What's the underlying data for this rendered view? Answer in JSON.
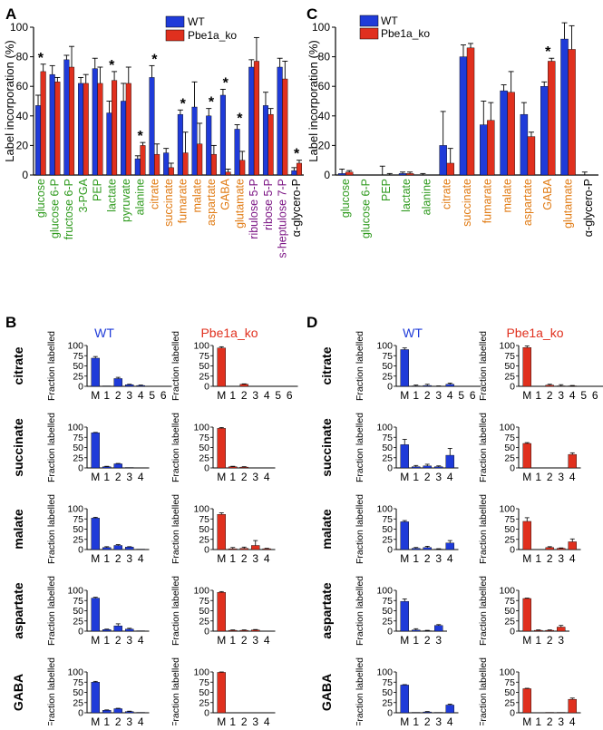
{
  "figure": {
    "panels": {
      "A": {
        "label": "A"
      },
      "B": {
        "label": "B"
      },
      "C": {
        "label": "C"
      },
      "D": {
        "label": "D"
      }
    },
    "legend": {
      "wt": "WT",
      "ko": "Pbe1a_ko"
    },
    "sig_marker": "*",
    "colors": {
      "wt": "#1f3bd9",
      "ko": "#e0301e",
      "green": "#2e9a1d",
      "orange": "#e07a12",
      "purple": "#7b1484",
      "black": "#000000"
    }
  },
  "chart_data": [
    {
      "panel": "A",
      "type": "bar",
      "ylabel": "Label incorporation (%)",
      "ylim": [
        0,
        100
      ],
      "yticks": [
        0,
        20,
        40,
        60,
        80,
        100
      ],
      "grid": false,
      "legend_position": "top-right",
      "categories": [
        "glucose",
        "glucose 6-P",
        "fructose 6-P",
        "3-PGA",
        "PEP",
        "lactate",
        "pyruvate",
        "alanine",
        "citrate",
        "succinate",
        "fumarate",
        "malate",
        "aspartate",
        "GABA",
        "glutamate",
        "ribulose 5-P",
        "ribose 5-P",
        "s-heptulose 7-P",
        "α-glycero-P"
      ],
      "category_colors": [
        "green",
        "green",
        "green",
        "green",
        "green",
        "green",
        "green",
        "green",
        "orange",
        "orange",
        "orange",
        "orange",
        "orange",
        "orange",
        "orange",
        "purple",
        "purple",
        "purple",
        "black"
      ],
      "series": [
        {
          "name": "WT",
          "values": [
            47,
            68,
            78,
            62,
            72,
            42,
            50,
            11,
            66,
            15,
            41,
            46,
            40,
            54,
            31,
            73,
            47,
            73,
            3
          ],
          "errors": [
            7,
            6,
            3,
            4,
            7,
            8,
            12,
            2,
            8,
            3,
            3,
            17,
            5,
            4,
            3,
            5,
            9,
            6,
            2
          ]
        },
        {
          "name": "Pbe1a_ko",
          "values": [
            70,
            63,
            73,
            62,
            62,
            64,
            62,
            20,
            14,
            5,
            15,
            21,
            14,
            2,
            10,
            77,
            41,
            65,
            8
          ],
          "errors": [
            5,
            3,
            14,
            6,
            11,
            6,
            11,
            2,
            7,
            3,
            14,
            14,
            6,
            2,
            6,
            16,
            4,
            12,
            2
          ]
        }
      ],
      "significant": [
        "glucose",
        "lactate",
        "alanine",
        "citrate",
        "fumarate",
        "aspartate",
        "GABA",
        "glutamate",
        "α-glycero-P"
      ]
    },
    {
      "panel": "C",
      "type": "bar",
      "ylabel": "Label incorporation (%)",
      "ylim": [
        0,
        100
      ],
      "yticks": [
        0,
        20,
        40,
        60,
        80,
        100
      ],
      "grid": false,
      "legend_position": "top-left",
      "categories": [
        "glucose",
        "glucose 6-P",
        "PEP",
        "lactate",
        "alanine",
        "citrate",
        "succinate",
        "fumarate",
        "malate",
        "aspartate",
        "GABA",
        "glutamate",
        "α-glycero-P"
      ],
      "category_colors": [
        "green",
        "green",
        "green",
        "green",
        "green",
        "orange",
        "orange",
        "orange",
        "orange",
        "orange",
        "orange",
        "orange",
        "black"
      ],
      "series": [
        {
          "name": "WT",
          "values": [
            1,
            0,
            0,
            1,
            0,
            20,
            80,
            34,
            57,
            41,
            60,
            92,
            0
          ],
          "errors": [
            3,
            0,
            6,
            1,
            1,
            23,
            8,
            16,
            4,
            8,
            3,
            11,
            2
          ]
        },
        {
          "name": "Pbe1a_ko",
          "values": [
            2,
            0,
            0,
            1,
            0,
            8,
            86,
            37,
            56,
            26,
            77,
            85,
            0
          ],
          "errors": [
            1,
            0,
            1,
            1,
            0,
            10,
            3,
            12,
            14,
            3,
            2,
            16,
            0
          ]
        }
      ],
      "significant": [
        "GABA"
      ]
    },
    {
      "panel": "B",
      "type": "bar",
      "ylabel": "Fraction labelled",
      "ylim": [
        0,
        100
      ],
      "yticks": [
        0,
        25,
        50,
        75,
        100
      ],
      "columns": [
        "WT",
        "Pbe1a_ko"
      ],
      "rows": [
        {
          "metabolite": "citrate",
          "categories": [
            "M",
            "1",
            "2",
            "3",
            "4",
            "5",
            "6"
          ],
          "WT": {
            "values": [
              69,
              1,
              19,
              4,
              2,
              0,
              0
            ],
            "errors": [
              4,
              0,
              3,
              1,
              1,
              0,
              0
            ]
          },
          "Pbe1a_ko": {
            "values": [
              94,
              0,
              5,
              0,
              0,
              0,
              0
            ],
            "errors": [
              3,
              0,
              1,
              0,
              0,
              0,
              0
            ]
          }
        },
        {
          "metabolite": "succinate",
          "categories": [
            "M",
            "1",
            "2",
            "3",
            "4"
          ],
          "WT": {
            "values": [
              86,
              3,
              10,
              1,
              0
            ],
            "errors": [
              1,
              1,
              1,
              0,
              0
            ]
          },
          "Pbe1a_ko": {
            "values": [
              97,
              3,
              2,
              0,
              0
            ],
            "errors": [
              2,
              1,
              1,
              0,
              0
            ]
          }
        },
        {
          "metabolite": "malate",
          "categories": [
            "M",
            "1",
            "2",
            "3",
            "4"
          ],
          "WT": {
            "values": [
              77,
              5,
              10,
              6,
              1
            ],
            "errors": [
              2,
              2,
              2,
              1,
              0
            ]
          },
          "Pbe1a_ko": {
            "values": [
              86,
              2,
              3,
              10,
              2
            ],
            "errors": [
              4,
              3,
              3,
              12,
              1
            ]
          }
        },
        {
          "metabolite": "aspartate",
          "categories": [
            "M",
            "1",
            "2",
            "3",
            "4"
          ],
          "WT": {
            "values": [
              81,
              4,
              13,
              5,
              1
            ],
            "errors": [
              2,
              1,
              5,
              2,
              0
            ]
          },
          "Pbe1a_ko": {
            "values": [
              95,
              2,
              2,
              3,
              0
            ],
            "errors": [
              2,
              1,
              1,
              1,
              0
            ]
          }
        },
        {
          "metabolite": "GABA",
          "categories": [
            "M",
            "1",
            "2",
            "3",
            "4"
          ],
          "WT": {
            "values": [
              75,
              6,
              10,
              3,
              1
            ],
            "errors": [
              2,
              1,
              1,
              1,
              0
            ]
          },
          "Pbe1a_ko": {
            "values": [
              99,
              0,
              0,
              0,
              0
            ],
            "errors": [
              1,
              0,
              0,
              0,
              0
            ]
          }
        }
      ]
    },
    {
      "panel": "D",
      "type": "bar",
      "ylabel": "Fraction labelled",
      "ylim": [
        0,
        100
      ],
      "yticks": [
        0,
        25,
        50,
        75,
        100
      ],
      "columns": [
        "WT",
        "Pbe1a_ko"
      ],
      "rows": [
        {
          "metabolite": "citrate",
          "categories": [
            "M",
            "1",
            "2",
            "3",
            "4",
            "5",
            "6"
          ],
          "WT": {
            "values": [
              90,
              1,
              2,
              0,
              5,
              0,
              0
            ],
            "errors": [
              4,
              2,
              3,
              1,
              3,
              0,
              0
            ]
          },
          "Pbe1a_ko": {
            "values": [
              95,
              0,
              3,
              1,
              1,
              0,
              0
            ],
            "errors": [
              4,
              0,
              2,
              3,
              1,
              0,
              0
            ]
          }
        },
        {
          "metabolite": "succinate",
          "categories": [
            "M",
            "1",
            "2",
            "3",
            "4"
          ],
          "WT": {
            "values": [
              57,
              3,
              5,
              3,
              31
            ],
            "errors": [
              13,
              3,
              4,
              2,
              17
            ]
          },
          "Pbe1a_ko": {
            "values": [
              60,
              0,
              0,
              0,
              33
            ],
            "errors": [
              2,
              0,
              0,
              0,
              4
            ]
          }
        },
        {
          "metabolite": "malate",
          "categories": [
            "M",
            "1",
            "2",
            "3",
            "4"
          ],
          "WT": {
            "values": [
              68,
              3,
              5,
              1,
              16
            ],
            "errors": [
              3,
              2,
              3,
              1,
              6
            ]
          },
          "Pbe1a_ko": {
            "values": [
              69,
              0,
              5,
              3,
              19
            ],
            "errors": [
              9,
              0,
              2,
              1,
              7
            ]
          }
        },
        {
          "metabolite": "aspartate",
          "categories": [
            "M",
            "1",
            "2",
            "3"
          ],
          "WT": {
            "values": [
              73,
              3,
              1,
              14
            ],
            "errors": [
              6,
              3,
              1,
              2
            ]
          },
          "Pbe1a_ko": {
            "values": [
              80,
              2,
              2,
              10
            ],
            "errors": [
              1,
              1,
              1,
              4
            ]
          }
        },
        {
          "metabolite": "GABA",
          "categories": [
            "M",
            "1",
            "2",
            "3",
            "4"
          ],
          "WT": {
            "values": [
              68,
              1,
              2,
              1,
              19
            ],
            "errors": [
              1,
              0,
              1,
              0,
              2
            ]
          },
          "Pbe1a_ko": {
            "values": [
              59,
              0,
              1,
              1,
              33
            ],
            "errors": [
              1,
              0,
              0,
              0,
              3
            ]
          }
        }
      ]
    }
  ]
}
